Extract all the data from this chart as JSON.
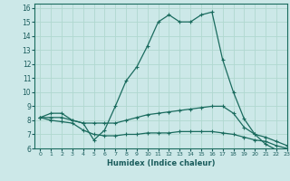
{
  "xlabel": "Humidex (Indice chaleur)",
  "ylabel": "",
  "bg_color": "#cce8e8",
  "grid_color": "#b0d8d0",
  "line_color": "#1a6b5e",
  "xlim": [
    -0.5,
    23
  ],
  "ylim": [
    6,
    16.3
  ],
  "yticks": [
    6,
    7,
    8,
    9,
    10,
    11,
    12,
    13,
    14,
    15,
    16
  ],
  "xticks": [
    0,
    1,
    2,
    3,
    4,
    5,
    6,
    7,
    8,
    9,
    10,
    11,
    12,
    13,
    14,
    15,
    16,
    17,
    18,
    19,
    20,
    21,
    22,
    23
  ],
  "line1_x": [
    0,
    1,
    2,
    3,
    4,
    5,
    6,
    7,
    8,
    9,
    10,
    11,
    12,
    13,
    14,
    15,
    16,
    17,
    18,
    19,
    20,
    21,
    22,
    23
  ],
  "line1_y": [
    8.2,
    8.5,
    8.5,
    8.0,
    7.8,
    6.6,
    7.3,
    9.0,
    10.8,
    11.8,
    13.3,
    15.0,
    15.5,
    15.0,
    15.0,
    15.5,
    15.7,
    12.3,
    10.0,
    8.1,
    7.0,
    6.3,
    5.9,
    5.9
  ],
  "line2_x": [
    0,
    1,
    2,
    3,
    4,
    5,
    6,
    7,
    8,
    9,
    10,
    11,
    12,
    13,
    14,
    15,
    16,
    17,
    18,
    19,
    20,
    21,
    22,
    23
  ],
  "line2_y": [
    8.2,
    8.2,
    8.2,
    8.0,
    7.8,
    7.8,
    7.8,
    7.8,
    8.0,
    8.2,
    8.4,
    8.5,
    8.6,
    8.7,
    8.8,
    8.9,
    9.0,
    9.0,
    8.5,
    7.5,
    7.0,
    6.8,
    6.5,
    6.2
  ],
  "line3_x": [
    0,
    1,
    2,
    3,
    4,
    5,
    6,
    7,
    8,
    9,
    10,
    11,
    12,
    13,
    14,
    15,
    16,
    17,
    18,
    19,
    20,
    21,
    22,
    23
  ],
  "line3_y": [
    8.2,
    8.0,
    7.9,
    7.8,
    7.3,
    7.0,
    6.9,
    6.9,
    7.0,
    7.0,
    7.1,
    7.1,
    7.1,
    7.2,
    7.2,
    7.2,
    7.2,
    7.1,
    7.0,
    6.8,
    6.6,
    6.5,
    6.2,
    6.0
  ]
}
